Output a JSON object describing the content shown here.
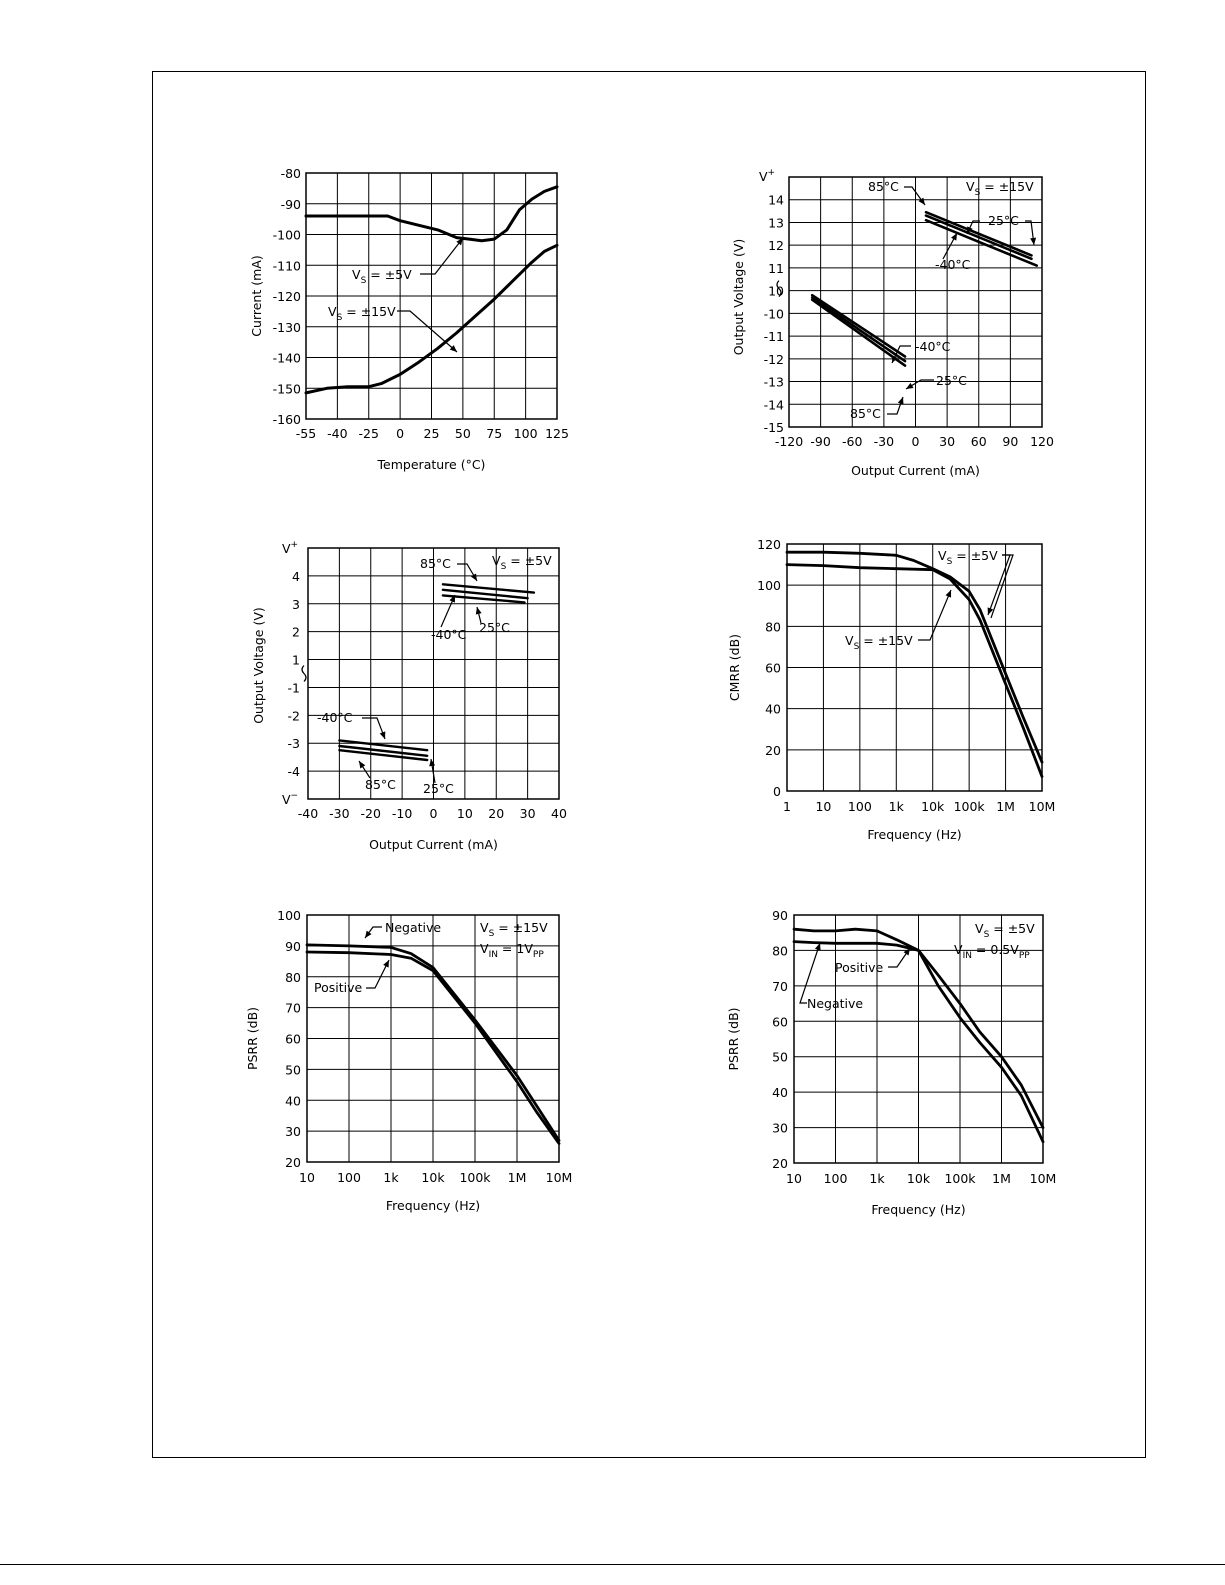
{
  "charts": [
    {
      "id": "c1",
      "type": "line",
      "xlabel": "Temperature (°C)",
      "ylabel": "Current (mA)",
      "x_ticks": [
        "-55",
        "-40",
        "-25",
        "0",
        "25",
        "50",
        "75",
        "100",
        "125"
      ],
      "y_ticks": [
        "-80",
        "-90",
        "-100",
        "-110",
        "-120",
        "-130",
        "-140",
        "-150",
        "-160"
      ],
      "xlim": [
        -55,
        125
      ],
      "ylim": [
        -160,
        -80
      ],
      "series": [
        {
          "name": "VS = ±5V",
          "x": [
            -55,
            -40,
            -25,
            -10,
            0,
            15,
            30,
            45,
            55,
            65,
            75,
            85,
            95,
            105,
            115,
            125
          ],
          "y": [
            -94,
            -94,
            -94,
            -94,
            -95.5,
            -97,
            -98.5,
            -101,
            -101.5,
            -102,
            -101.5,
            -98.5,
            -92,
            -88.5,
            -86,
            -84.5
          ]
        },
        {
          "name": "VS = ±15V",
          "x": [
            -55,
            -45,
            -35,
            -25,
            -15,
            0,
            15,
            30,
            45,
            60,
            75,
            90,
            105,
            115,
            125
          ],
          "y": [
            -151.5,
            -150,
            -149.5,
            -149.5,
            -148.5,
            -145.5,
            -141.5,
            -137,
            -132,
            -126.5,
            -121,
            -115,
            -109,
            -105.5,
            -103.5
          ]
        }
      ],
      "annotations": [
        {
          "base": "V",
          "sub": "S",
          "text": " = ±5V"
        },
        {
          "base": "V",
          "sub": "S",
          "text": " = ±15V"
        }
      ]
    },
    {
      "id": "c2",
      "type": "line",
      "xlabel": "Output Current (mA)",
      "ylabel": "Output Voltage (V)",
      "x_ticks": [
        "-120",
        "-90",
        "-60",
        "-30",
        "0",
        "30",
        "60",
        "90",
        "120"
      ],
      "y_ticks": [
        "V+",
        "14",
        "13",
        "12",
        "11",
        "10",
        "-10",
        "-11",
        "-12",
        "-13",
        "-14",
        "-15"
      ],
      "xlim": [
        -120,
        120
      ],
      "note": "Axis break between 10 and -10 (upper rows = V+ .. 10, lower rows = -10 .. -15)",
      "series": [
        {
          "name": "85°C",
          "x": [
            10,
            110
          ],
          "y": [
            13.45,
            11.55
          ]
        },
        {
          "name": "25°C",
          "x": [
            10,
            110
          ],
          "y": [
            13.3,
            11.4
          ]
        },
        {
          "name": "-40°C",
          "x": [
            10,
            115
          ],
          "y": [
            13.1,
            11.1
          ]
        },
        {
          "name": "-40°C",
          "x": [
            -98,
            -10
          ],
          "y": [
            -10.2,
            -12.9
          ]
        },
        {
          "name": "25°C",
          "x": [
            -98,
            -10
          ],
          "y": [
            -10.3,
            -13.1
          ]
        },
        {
          "name": "85°C",
          "x": [
            -98,
            -10
          ],
          "y": [
            -10.4,
            -13.3
          ]
        }
      ],
      "annotations": [
        {
          "text": "85°C"
        },
        {
          "base": "V",
          "sub": "S",
          "text": " = ±15V"
        },
        {
          "text": "25°C"
        },
        {
          "text": "-40°C"
        },
        {
          "text": "-40°C"
        },
        {
          "text": "25°C"
        },
        {
          "text": "85°C"
        }
      ]
    },
    {
      "id": "c3",
      "type": "line",
      "xlabel": "Output Current (mA)",
      "ylabel": "Output Voltage (V)",
      "x_ticks": [
        "-40",
        "-30",
        "-20",
        "-10",
        "0",
        "10",
        "20",
        "30",
        "40"
      ],
      "y_ticks": [
        "V+",
        "4",
        "3",
        "2",
        "1",
        "-1",
        "-2",
        "-3",
        "-4",
        "V-"
      ],
      "xlim": [
        -40,
        40
      ],
      "note": "Axis break between 1 and -1",
      "series": [
        {
          "name": "85°C",
          "x": [
            3,
            32
          ],
          "y": [
            3.7,
            3.4
          ]
        },
        {
          "name": "25°C",
          "x": [
            3,
            30
          ],
          "y": [
            3.5,
            3.2
          ]
        },
        {
          "name": "-40°C",
          "x": [
            3,
            29
          ],
          "y": [
            3.3,
            3.05
          ]
        },
        {
          "name": "-40°C",
          "x": [
            -30,
            -2
          ],
          "y": [
            -2.9,
            -3.25
          ]
        },
        {
          "name": "85°C",
          "x": [
            -30,
            -2
          ],
          "y": [
            -3.1,
            -3.45
          ]
        },
        {
          "name": "25°C",
          "x": [
            -30,
            -2
          ],
          "y": [
            -3.25,
            -3.6
          ]
        }
      ],
      "annotations": [
        {
          "text": "85°C"
        },
        {
          "base": "V",
          "sub": "S",
          "text": " = ±5V"
        },
        {
          "text": "-40°C"
        },
        {
          "text": "25°C"
        },
        {
          "text": "-40°C"
        },
        {
          "text": "85°C"
        },
        {
          "text": "25°C"
        }
      ]
    },
    {
      "id": "c4",
      "type": "line",
      "xlabel": "Frequency (Hz)",
      "ylabel": "CMRR (dB)",
      "x_ticks": [
        "1",
        "10",
        "100",
        "1k",
        "10k",
        "100k",
        "1M",
        "10M"
      ],
      "y_ticks": [
        "120",
        "100",
        "80",
        "60",
        "40",
        "20",
        "0"
      ],
      "xlim": [
        1,
        10000000
      ],
      "xscale": "log",
      "ylim": [
        0,
        120
      ],
      "series": [
        {
          "name": "VS = ±5V",
          "x": [
            1,
            10,
            100,
            1000,
            3000,
            10000,
            30000,
            100000,
            200000,
            1000000,
            3000000,
            10000000
          ],
          "y": [
            116,
            116,
            115.5,
            114.5,
            112,
            108,
            104,
            97,
            88,
            57,
            36,
            14
          ]
        },
        {
          "name": "VS = ±15V",
          "x": [
            1,
            10,
            100,
            1000,
            10000,
            30000,
            100000,
            200000,
            1000000,
            3000000,
            10000000
          ],
          "y": [
            110,
            109.5,
            108.5,
            108,
            107.5,
            103,
            93,
            83,
            52,
            31,
            7
          ]
        }
      ],
      "annotations": [
        {
          "base": "V",
          "sub": "S",
          "text": " = ±5V"
        },
        {
          "base": "V",
          "sub": "S",
          "text": " = ±15V"
        }
      ]
    },
    {
      "id": "c5",
      "type": "line",
      "xlabel": "Frequency (Hz)",
      "ylabel": "PSRR (dB)",
      "x_ticks": [
        "10",
        "100",
        "1k",
        "10k",
        "100k",
        "1M",
        "10M"
      ],
      "y_ticks": [
        "100",
        "90",
        "80",
        "70",
        "60",
        "50",
        "40",
        "30",
        "20"
      ],
      "xlim": [
        10,
        10000000
      ],
      "xscale": "log",
      "ylim": [
        20,
        100
      ],
      "series": [
        {
          "name": "Negative",
          "x": [
            10,
            100,
            1000,
            3000,
            10000,
            100000,
            1000000,
            3000000,
            10000000
          ],
          "y": [
            90.3,
            90,
            89.5,
            87.5,
            83,
            66,
            48,
            38,
            27
          ]
        },
        {
          "name": "Positive",
          "x": [
            10,
            100,
            1000,
            3000,
            10000,
            100000,
            1000000,
            3000000,
            10000000
          ],
          "y": [
            88,
            87.8,
            87.2,
            86,
            82,
            65,
            46,
            36,
            26
          ]
        }
      ],
      "annotations": [
        {
          "text": "Negative"
        },
        {
          "text": "Positive"
        },
        {
          "base": "V",
          "sub": "S",
          "text": " = ±15V"
        },
        {
          "base": "V",
          "sub": "IN",
          "text": " = 1V",
          "sub2": "PP"
        }
      ]
    },
    {
      "id": "c6",
      "type": "line",
      "xlabel": "Frequency (Hz)",
      "ylabel": "PSRR (dB)",
      "x_ticks": [
        "10",
        "100",
        "1k",
        "10k",
        "100k",
        "1M",
        "10M"
      ],
      "y_ticks": [
        "90",
        "80",
        "70",
        "60",
        "50",
        "40",
        "30",
        "20"
      ],
      "xlim": [
        10,
        10000000
      ],
      "xscale": "log",
      "ylim": [
        20,
        90
      ],
      "series": [
        {
          "name": "Negative",
          "x": [
            10,
            30,
            100,
            300,
            1000,
            3000,
            10000,
            30000,
            100000,
            300000,
            1000000,
            3000000,
            10000000
          ],
          "y": [
            86,
            85.5,
            85.5,
            86,
            85.5,
            83,
            80,
            70,
            61,
            54,
            47,
            39,
            26
          ]
        },
        {
          "name": "Positive",
          "x": [
            10,
            30,
            100,
            1000,
            3000,
            10000,
            30000,
            100000,
            300000,
            1000000,
            3000000,
            10000000
          ],
          "y": [
            82.5,
            82.2,
            82,
            82,
            81.5,
            80,
            73,
            65,
            57,
            50,
            42,
            30
          ]
        }
      ],
      "annotations": [
        {
          "base": "V",
          "sub": "S",
          "text": " = ±5V"
        },
        {
          "base": "V",
          "sub": "IN",
          "text": " = 0.5V",
          "sub2": "PP"
        },
        {
          "text": "Positive"
        },
        {
          "text": "Negative"
        }
      ]
    }
  ]
}
